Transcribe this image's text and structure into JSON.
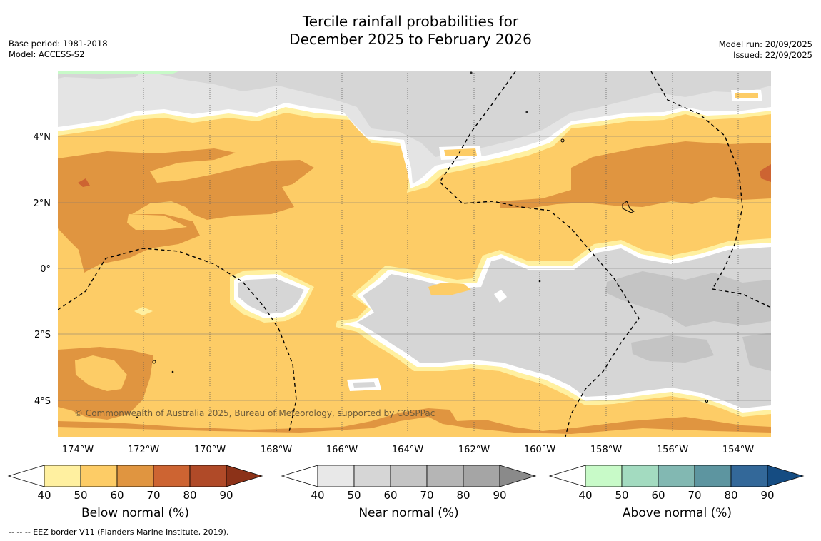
{
  "title": {
    "line1": "Tercile rainfall probabilities for",
    "line2": "December 2025 to February 2026"
  },
  "meta": {
    "base_period": "Base period: 1981-2018",
    "model": "Model: ACCESS-S2",
    "model_run": "Model run: 20/09/2025",
    "issued": "Issued: 22/09/2025"
  },
  "map": {
    "x_ticks": [
      "174°W",
      "172°W",
      "170°W",
      "168°W",
      "166°W",
      "164°W",
      "162°W",
      "160°W",
      "158°W",
      "156°W",
      "154°W"
    ],
    "y_ticks": [
      "4°N",
      "2°N",
      "0°",
      "2°S",
      "4°S"
    ],
    "lon_range": [
      174.6,
      153.0
    ],
    "lat_range": [
      5.8,
      -5.2
    ],
    "copyright": "© Commonwealth of Australia 2025, Bureau of Meteorology, supported by COSPPac"
  },
  "colorbars": [
    {
      "label": "Below normal (%)",
      "ticks": [
        "40",
        "50",
        "60",
        "70",
        "80",
        "90"
      ],
      "colors": [
        "#fff0a0",
        "#fdcc66",
        "#e09540",
        "#cd6432",
        "#b04a28",
        "#8c3218"
      ]
    },
    {
      "label": "Near normal (%)",
      "ticks": [
        "40",
        "50",
        "60",
        "70",
        "80",
        "90"
      ],
      "colors": [
        "#e8e8e8",
        "#d6d6d6",
        "#c4c4c4",
        "#b5b5b5",
        "#a5a5a5",
        "#8a8a8a"
      ]
    },
    {
      "label": "Above normal (%)",
      "ticks": [
        "40",
        "50",
        "60",
        "70",
        "80",
        "90"
      ],
      "colors": [
        "#c8fac8",
        "#a3dbc0",
        "#82b8b2",
        "#5d95a0",
        "#336899",
        "#154c82"
      ]
    }
  ],
  "footnote": "--  --  -- EEZ border V11 (Flanders Marine Institute, 2019)."
}
